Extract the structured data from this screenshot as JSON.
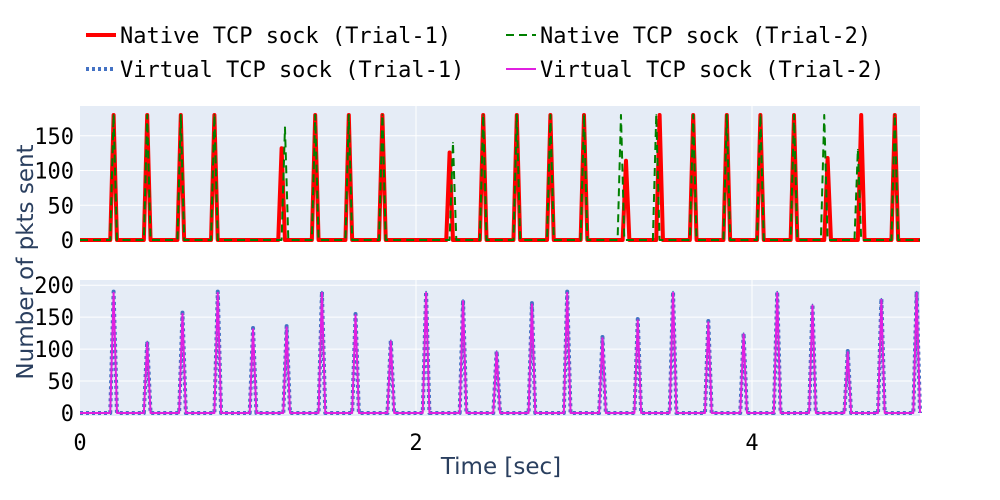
{
  "colors": {
    "plot_bg": "#e5ecf6",
    "grid": "#ffffff",
    "axis_title": "#2a3f5f"
  },
  "chart_data": {
    "type": "line",
    "xlabel": "Time [sec]",
    "ylabel": "Number of pkts sent",
    "xlim": [
      0,
      5
    ],
    "x_ticks": [
      0,
      2,
      4
    ],
    "x_tick_labels": [
      "0",
      "2",
      "4"
    ],
    "legend": [
      {
        "name": "Native TCP sock (Trial-1)",
        "color": "#ff0000",
        "dash": "solid"
      },
      {
        "name": "Native TCP sock (Trial-2)",
        "color": "#008000",
        "dash": "dash"
      },
      {
        "name": "Virtual TCP sock (Trial-1)",
        "color": "#4472c4",
        "dash": "dot"
      },
      {
        "name": "Virtual TCP sock (Trial-2)",
        "color": "#e020e0",
        "dash": "solid"
      }
    ],
    "panels": [
      {
        "ylim": [
          0,
          190
        ],
        "y_ticks": [
          0,
          50,
          100,
          150
        ],
        "y_tick_labels": [
          "0",
          "50",
          "100",
          "150"
        ],
        "series": [
          {
            "name": "Native TCP sock (Trial-1)",
            "peaks": [
              [
                0.2,
                180
              ],
              [
                0.4,
                180
              ],
              [
                0.6,
                180
              ],
              [
                0.8,
                180
              ],
              [
                1.2,
                132
              ],
              [
                1.4,
                180
              ],
              [
                1.6,
                180
              ],
              [
                1.8,
                180
              ],
              [
                2.2,
                126
              ],
              [
                2.4,
                180
              ],
              [
                2.6,
                180
              ],
              [
                2.8,
                180
              ],
              [
                3.0,
                180
              ],
              [
                3.25,
                114
              ],
              [
                3.45,
                180
              ],
              [
                3.65,
                180
              ],
              [
                3.85,
                180
              ],
              [
                4.05,
                180
              ],
              [
                4.25,
                180
              ],
              [
                4.45,
                118
              ],
              [
                4.65,
                180
              ],
              [
                4.85,
                180
              ]
            ]
          },
          {
            "name": "Native TCP sock (Trial-2)",
            "peaks": [
              [
                0.2,
                180
              ],
              [
                0.4,
                180
              ],
              [
                0.6,
                180
              ],
              [
                0.8,
                180
              ],
              [
                1.22,
                162
              ],
              [
                1.4,
                180
              ],
              [
                1.6,
                180
              ],
              [
                1.8,
                180
              ],
              [
                2.22,
                140
              ],
              [
                2.4,
                180
              ],
              [
                2.6,
                180
              ],
              [
                2.8,
                180
              ],
              [
                3.0,
                180
              ],
              [
                3.22,
                180
              ],
              [
                3.43,
                180
              ],
              [
                3.65,
                180
              ],
              [
                3.85,
                180
              ],
              [
                4.05,
                180
              ],
              [
                4.25,
                180
              ],
              [
                4.43,
                180
              ],
              [
                4.63,
                130
              ],
              [
                4.85,
                180
              ]
            ]
          }
        ]
      },
      {
        "ylim": [
          0,
          205
        ],
        "y_ticks": [
          0,
          50,
          100,
          150,
          200
        ],
        "y_tick_labels": [
          "0",
          "50",
          "100",
          "150",
          "200"
        ],
        "series": [
          {
            "name": "Virtual TCP sock (Trial-1)",
            "peaks": [
              [
                0.2,
                190
              ],
              [
                0.4,
                112
              ],
              [
                0.61,
                157
              ],
              [
                0.82,
                190
              ],
              [
                1.03,
                133
              ],
              [
                1.23,
                136
              ],
              [
                1.44,
                190
              ],
              [
                1.64,
                155
              ],
              [
                1.85,
                114
              ],
              [
                2.06,
                190
              ],
              [
                2.28,
                177
              ],
              [
                2.48,
                97
              ],
              [
                2.69,
                172
              ],
              [
                2.9,
                190
              ],
              [
                3.11,
                119
              ],
              [
                3.32,
                147
              ],
              [
                3.53,
                190
              ],
              [
                3.74,
                144
              ],
              [
                3.95,
                125
              ],
              [
                4.15,
                190
              ],
              [
                4.36,
                170
              ],
              [
                4.57,
                97
              ],
              [
                4.77,
                179
              ],
              [
                4.98,
                190
              ]
            ]
          },
          {
            "name": "Virtual TCP sock (Trial-2)",
            "peaks": [
              [
                0.2,
                188
              ],
              [
                0.4,
                110
              ],
              [
                0.61,
                155
              ],
              [
                0.82,
                188
              ],
              [
                1.03,
                131
              ],
              [
                1.23,
                134
              ],
              [
                1.44,
                188
              ],
              [
                1.64,
                153
              ],
              [
                1.85,
                112
              ],
              [
                2.06,
                188
              ],
              [
                2.28,
                175
              ],
              [
                2.48,
                95
              ],
              [
                2.69,
                170
              ],
              [
                2.9,
                188
              ],
              [
                3.11,
                117
              ],
              [
                3.32,
                145
              ],
              [
                3.53,
                188
              ],
              [
                3.74,
                142
              ],
              [
                3.95,
                123
              ],
              [
                4.15,
                188
              ],
              [
                4.36,
                168
              ],
              [
                4.57,
                95
              ],
              [
                4.77,
                177
              ],
              [
                4.98,
                188
              ]
            ]
          }
        ]
      }
    ]
  }
}
